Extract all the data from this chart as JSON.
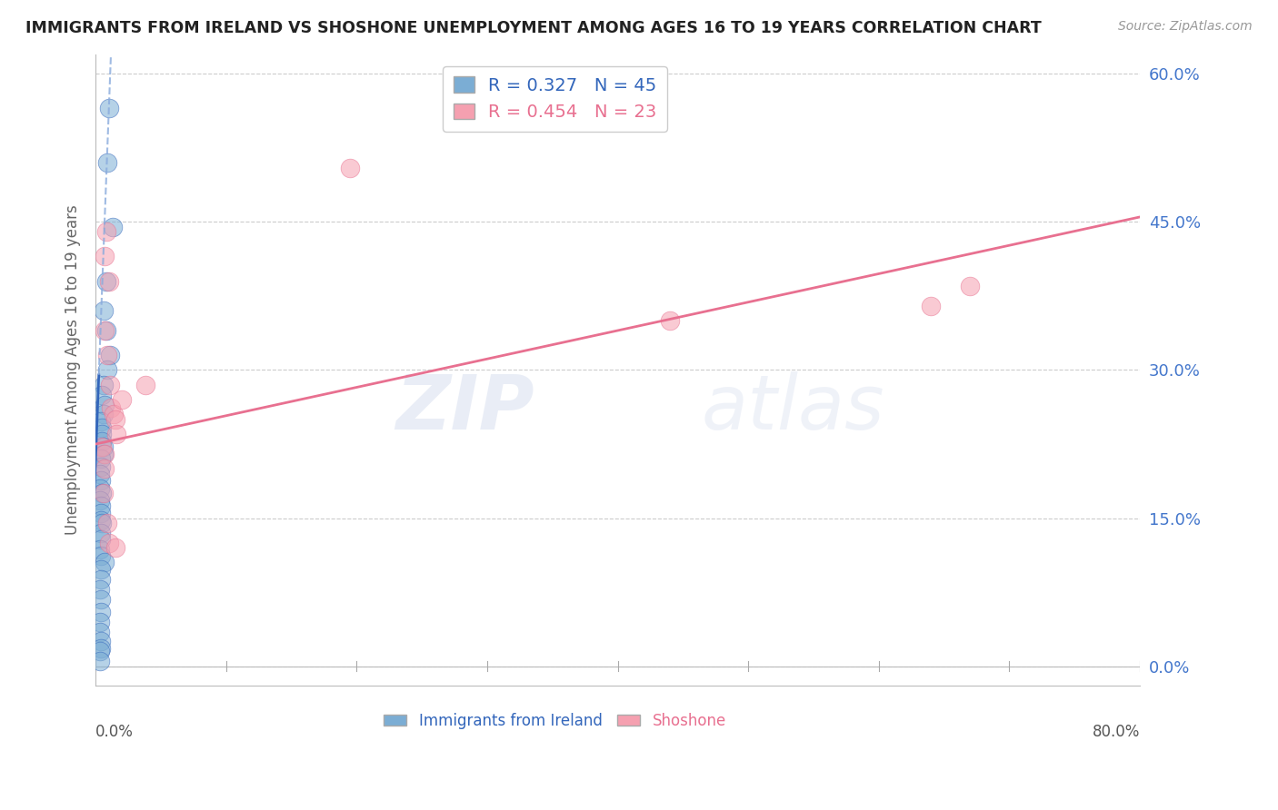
{
  "title": "IMMIGRANTS FROM IRELAND VS SHOSHONE UNEMPLOYMENT AMONG AGES 16 TO 19 YEARS CORRELATION CHART",
  "source": "Source: ZipAtlas.com",
  "ylabel": "Unemployment Among Ages 16 to 19 years",
  "legend1_label": "Immigrants from Ireland",
  "legend2_label": "Shoshone",
  "R1": 0.327,
  "N1": 45,
  "R2": 0.454,
  "N2": 23,
  "color1": "#7BADD4",
  "color2": "#F5A0B0",
  "trend1_color": "#3366BB",
  "trend2_color": "#E87090",
  "xlim": [
    0.0,
    0.8
  ],
  "ylim": [
    -0.02,
    0.62
  ],
  "yticks": [
    0.0,
    0.15,
    0.3,
    0.45,
    0.6
  ],
  "xticks": [
    0.0,
    0.2,
    0.4,
    0.6,
    0.8
  ],
  "watermark_zip": "ZIP",
  "watermark_atlas": "atlas",
  "blue_scatter_x": [
    0.01,
    0.009,
    0.013,
    0.008,
    0.006,
    0.008,
    0.011,
    0.009,
    0.006,
    0.005,
    0.007,
    0.006,
    0.004,
    0.005,
    0.005,
    0.005,
    0.006,
    0.006,
    0.004,
    0.004,
    0.003,
    0.004,
    0.003,
    0.005,
    0.003,
    0.004,
    0.004,
    0.004,
    0.005,
    0.004,
    0.004,
    0.003,
    0.004,
    0.007,
    0.004,
    0.004,
    0.003,
    0.004,
    0.004,
    0.003,
    0.003,
    0.004,
    0.004,
    0.003,
    0.003
  ],
  "blue_scatter_y": [
    0.565,
    0.51,
    0.445,
    0.39,
    0.36,
    0.34,
    0.315,
    0.3,
    0.285,
    0.275,
    0.265,
    0.255,
    0.248,
    0.242,
    0.235,
    0.228,
    0.222,
    0.215,
    0.21,
    0.202,
    0.195,
    0.188,
    0.18,
    0.175,
    0.168,
    0.162,
    0.155,
    0.148,
    0.145,
    0.135,
    0.128,
    0.118,
    0.112,
    0.105,
    0.098,
    0.088,
    0.078,
    0.068,
    0.055,
    0.045,
    0.035,
    0.025,
    0.018,
    0.015,
    0.005
  ],
  "pink_scatter_x": [
    0.008,
    0.007,
    0.01,
    0.007,
    0.009,
    0.011,
    0.012,
    0.014,
    0.015,
    0.016,
    0.005,
    0.007,
    0.007,
    0.006,
    0.009,
    0.01,
    0.02,
    0.038,
    0.195,
    0.44,
    0.64,
    0.67,
    0.015
  ],
  "pink_scatter_y": [
    0.44,
    0.415,
    0.39,
    0.34,
    0.315,
    0.285,
    0.262,
    0.255,
    0.25,
    0.235,
    0.222,
    0.215,
    0.2,
    0.175,
    0.145,
    0.125,
    0.27,
    0.285,
    0.505,
    0.35,
    0.365,
    0.385,
    0.12
  ],
  "blue_trend_x0": 0.0,
  "blue_trend_y0": 0.21,
  "blue_trend_slope": 35.0,
  "pink_trend_x0": 0.0,
  "pink_trend_y0": 0.225,
  "pink_trend_x1": 0.8,
  "pink_trend_y1": 0.455
}
